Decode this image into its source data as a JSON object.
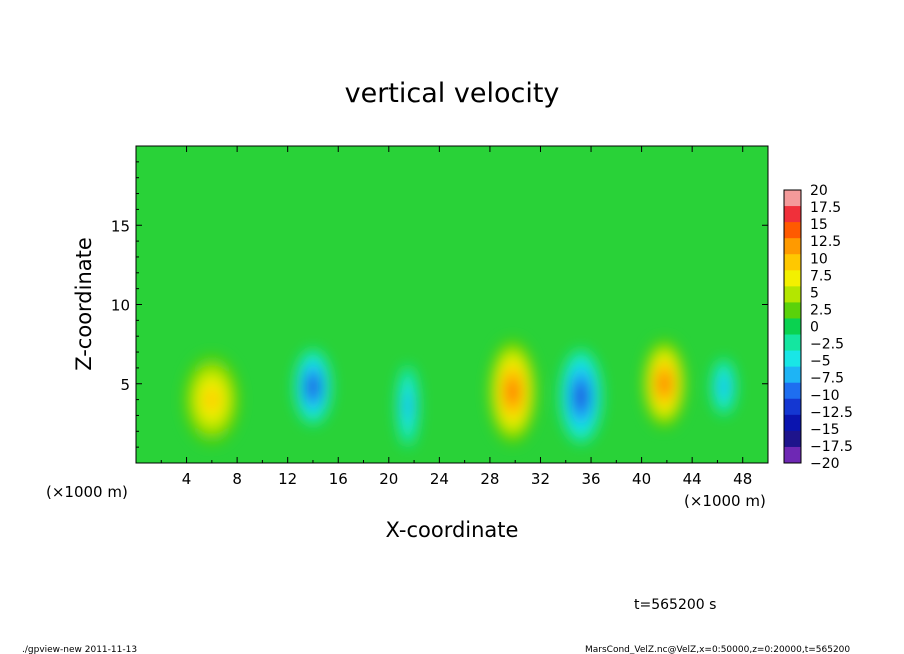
{
  "chart_data": {
    "type": "heatmap",
    "title": "vertical velocity",
    "xlabel": "X-coordinate",
    "ylabel": "Z-coordinate",
    "x_unit": "(×1000 m)",
    "x_unit_right": "(×1000 m)",
    "xlim": [
      0,
      50
    ],
    "ylim": [
      0,
      20
    ],
    "x_ticks": [
      "4",
      "8",
      "12",
      "16",
      "20",
      "24",
      "28",
      "32",
      "36",
      "40",
      "44",
      "48"
    ],
    "y_ticks": [
      "5",
      "10",
      "15"
    ],
    "colorbar_labels": [
      "20",
      "17.5",
      "15",
      "12.5",
      "10",
      "7.5",
      "5",
      "2.5",
      "0",
      "−2.5",
      "−5",
      "−7.5",
      "−10",
      "−12.5",
      "−15",
      "−17.5",
      "−20"
    ],
    "colorbar_colors": [
      "#f49a9a",
      "#f0303a",
      "#ff5a00",
      "#ff9a00",
      "#ffc800",
      "#f3f000",
      "#b4e600",
      "#5ad20a",
      "#0ad250",
      "#14e6a0",
      "#19e6e6",
      "#1eb4f5",
      "#1e6ef0",
      "#1437d2",
      "#0a14af",
      "#1e148c",
      "#6e28b4"
    ],
    "blobs": [
      {
        "x": 6.0,
        "z": 4.0,
        "value": 9,
        "rx": 2.2,
        "rz": 2.8
      },
      {
        "x": 14.0,
        "z": 4.8,
        "value": -12,
        "rx": 1.5,
        "rz": 2.4
      },
      {
        "x": 21.5,
        "z": 3.6,
        "value": -8,
        "rx": 0.9,
        "rz": 2.6
      },
      {
        "x": 29.8,
        "z": 4.5,
        "value": 15,
        "rx": 1.9,
        "rz": 3.3
      },
      {
        "x": 35.2,
        "z": 4.2,
        "value": -13,
        "rx": 1.7,
        "rz": 3.0
      },
      {
        "x": 41.8,
        "z": 5.0,
        "value": 14,
        "rx": 1.7,
        "rz": 2.8
      },
      {
        "x": 46.5,
        "z": 4.8,
        "value": -8,
        "rx": 1.0,
        "rz": 1.8
      }
    ]
  },
  "footer": {
    "time_label": "t=565200 s",
    "program_label": "./gpview-new  2011-11-13",
    "file_label": "MarsCond_VelZ.nc@VelZ,x=0:50000,z=0:20000,t=565200"
  }
}
